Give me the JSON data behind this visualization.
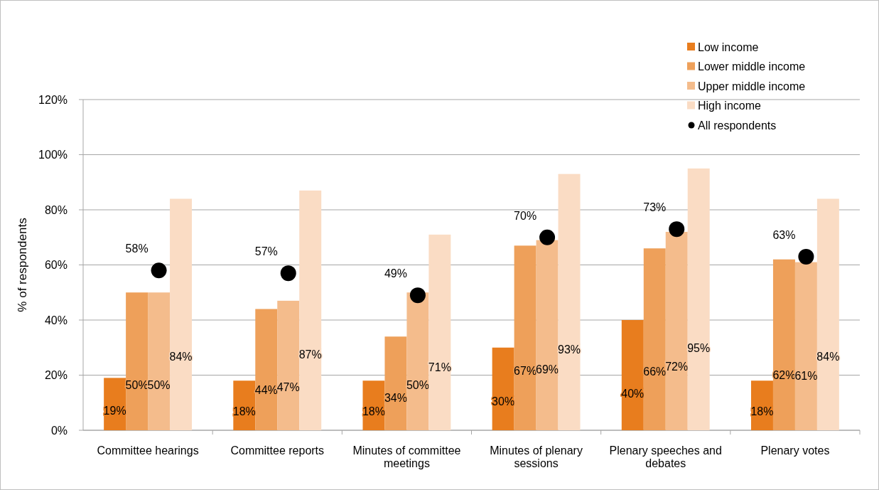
{
  "chart_data": {
    "type": "bar",
    "ylabel": "% of respondents",
    "categories": [
      "Committee hearings",
      "Committee reports",
      "Minutes of committee meetings",
      "Minutes of plenary sessions",
      "Plenary speeches and debates",
      "Plenary votes"
    ],
    "series": [
      {
        "name": "Low income",
        "color": "#e87d1e",
        "values": [
          19,
          18,
          18,
          30,
          40,
          18
        ],
        "value_labels": [
          "19%",
          "18%",
          "18%",
          "30%",
          "40%",
          "18%"
        ]
      },
      {
        "name": "Lower middle income",
        "color": "#eea05a",
        "values": [
          50,
          44,
          34,
          67,
          66,
          62
        ],
        "value_labels": [
          "50%",
          "44%",
          "34%",
          "67%",
          "66%",
          "62%"
        ]
      },
      {
        "name": "Upper middle income",
        "color": "#f4bc8c",
        "values": [
          50,
          47,
          50,
          69,
          72,
          61
        ],
        "value_labels": [
          "50%",
          "47%",
          "50%",
          "69%",
          "72%",
          "61%"
        ]
      },
      {
        "name": "High income",
        "color": "#fadcc4",
        "values": [
          84,
          87,
          71,
          93,
          95,
          84
        ],
        "value_labels": [
          "84%",
          "87%",
          "71%",
          "93%",
          "95%",
          "84%"
        ]
      },
      {
        "name": "All respondents",
        "type": "scatter",
        "color": "#000000",
        "marker": "circle",
        "x": [
          "Committee hearings",
          "Committee reports",
          "Minutes of committee meetings",
          "Minutes of plenary sessions",
          "Plenary speeches and debates",
          "Plenary votes"
        ],
        "values": [
          58,
          57,
          49,
          70,
          73,
          63
        ],
        "value_labels": [
          "58%",
          "57%",
          "49%",
          "70%",
          "73%",
          "63%"
        ]
      }
    ],
    "ylim": [
      0,
      120
    ],
    "yticks": [
      {
        "value": 0,
        "label": "0%"
      },
      {
        "value": 20,
        "label": "20%"
      },
      {
        "value": 40,
        "label": "40%"
      },
      {
        "value": 60,
        "label": "60%"
      },
      {
        "value": 80,
        "label": "80%"
      },
      {
        "value": 100,
        "label": "100%"
      },
      {
        "value": 120,
        "label": "120%"
      }
    ],
    "grid": "y",
    "legend": "top right"
  }
}
